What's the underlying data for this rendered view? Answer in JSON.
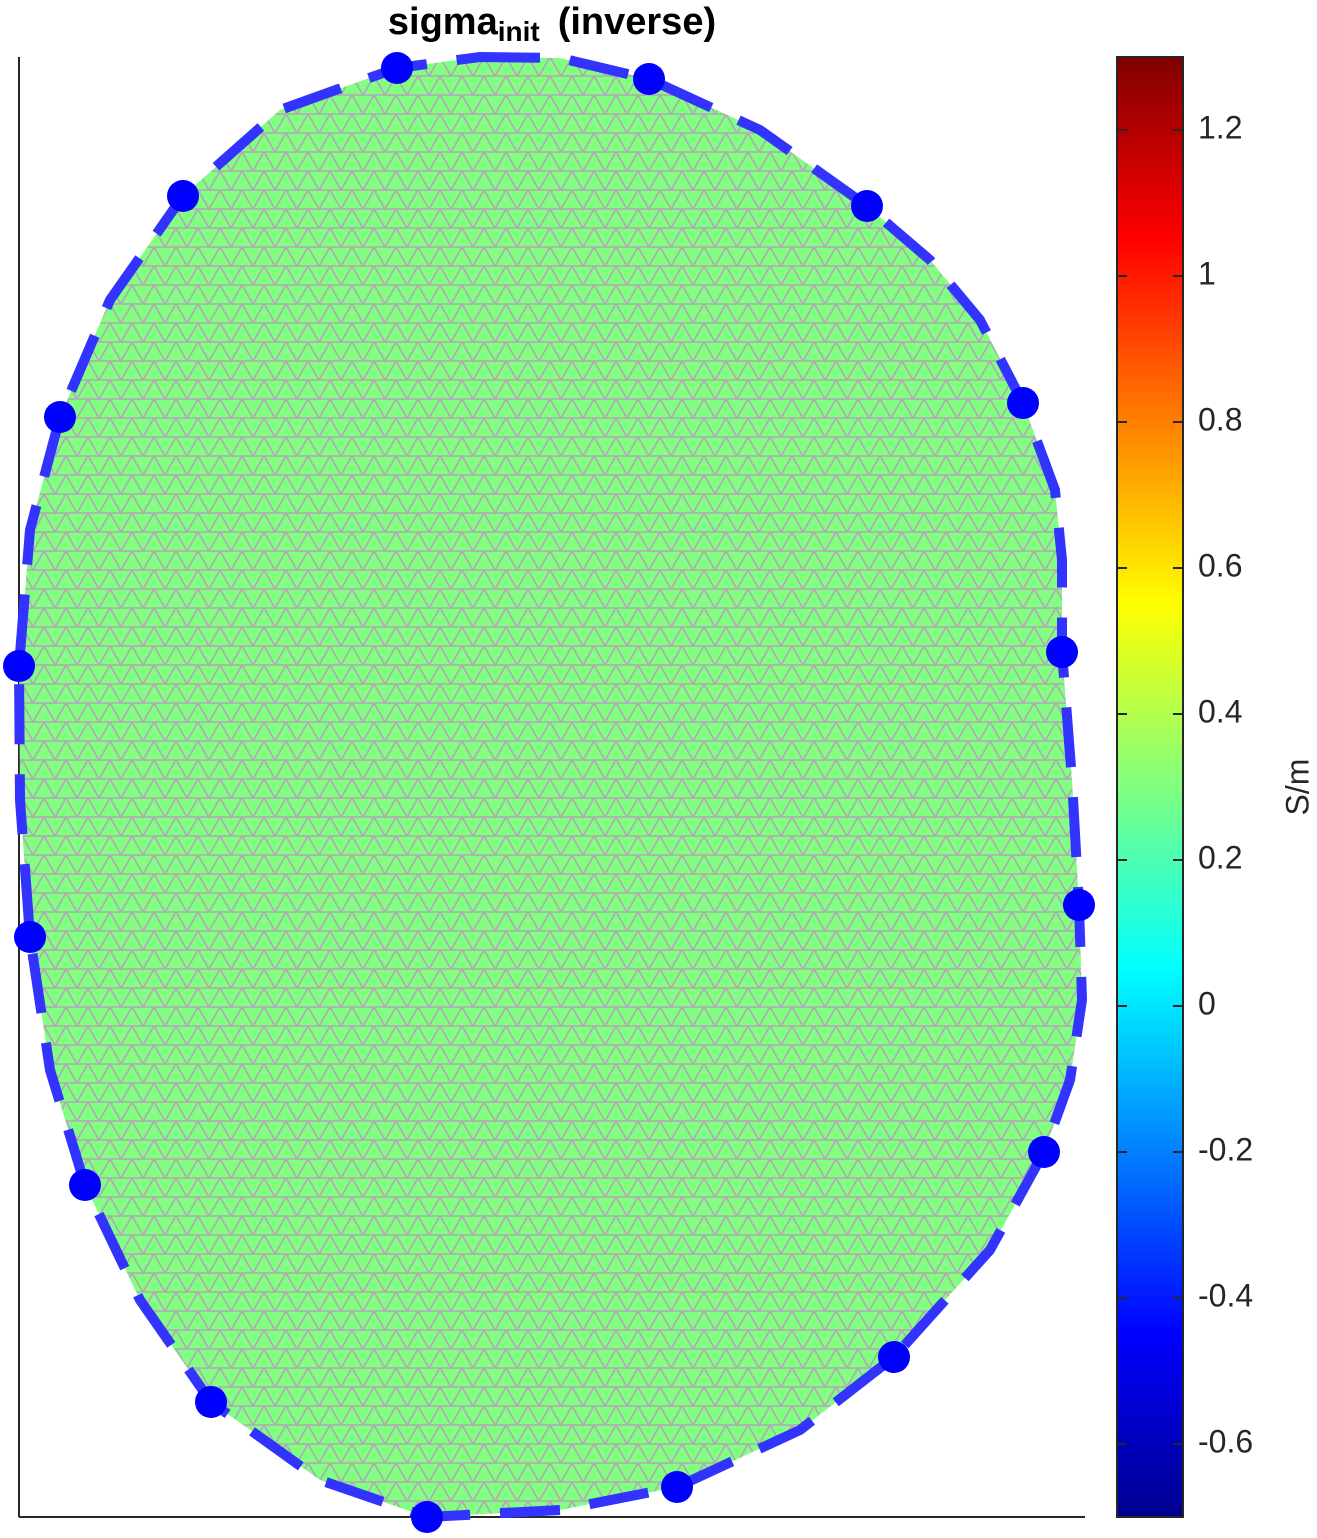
{
  "chart_data": {
    "type": "mesh",
    "title": "sigma",
    "title_subscript": "init",
    "title_suffix": "(inverse)",
    "value": 0.3,
    "colorbar": {
      "label": "S/m",
      "lim": [
        -0.7,
        1.3
      ],
      "ticks": [
        -0.6,
        -0.4,
        -0.2,
        0,
        0.2,
        0.4,
        0.6,
        0.8,
        1,
        1.2
      ],
      "colormap": "jet"
    },
    "mesh_edge_color": "#b4a6b6",
    "electrode_color": "#0000ff",
    "boundary_color": "#3333ff"
  }
}
